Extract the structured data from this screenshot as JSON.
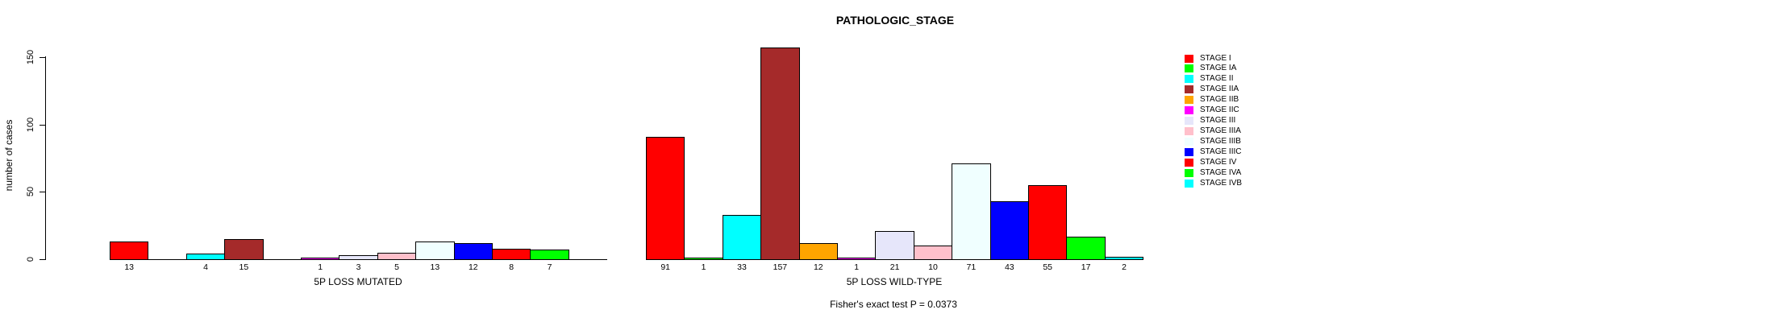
{
  "title": "PATHOLOGIC_STAGE",
  "footer_note": "Fisher's exact test P = 0.0373",
  "chart_data": {
    "type": "bar",
    "title": "PATHOLOGIC_STAGE",
    "xlabel": "",
    "ylabel": "number of cases",
    "ylim": [
      0,
      160
    ],
    "yticks": [
      0,
      50,
      100,
      150
    ],
    "grid": false,
    "legend_position": "right",
    "categories": [
      "STAGE I",
      "STAGE IA",
      "STAGE II",
      "STAGE IIA",
      "STAGE IIB",
      "STAGE IIC",
      "STAGE III",
      "STAGE IIIA",
      "STAGE IIIB",
      "STAGE IIIC",
      "STAGE IV",
      "STAGE IVA",
      "STAGE IVB"
    ],
    "colors": [
      "#FF0000",
      "#00FF00",
      "#00FFFF",
      "#A52A2A",
      "#FFA500",
      "#FF00FF",
      "#E6E6FA",
      "#FFC0CB",
      "#F0FFFF",
      "#0000FF",
      "#FF0000",
      "#00FF00",
      "#00FFFF"
    ],
    "groups": [
      {
        "label": "5P LOSS MUTATED",
        "values": [
          13,
          0,
          4,
          15,
          0,
          1,
          3,
          5,
          13,
          12,
          8,
          7,
          0
        ]
      },
      {
        "label": "5P LOSS WILD-TYPE",
        "values": [
          91,
          1,
          33,
          157,
          12,
          1,
          21,
          10,
          71,
          43,
          55,
          17,
          2
        ]
      }
    ],
    "annotation": "Fisher's exact test P = 0.0373"
  }
}
